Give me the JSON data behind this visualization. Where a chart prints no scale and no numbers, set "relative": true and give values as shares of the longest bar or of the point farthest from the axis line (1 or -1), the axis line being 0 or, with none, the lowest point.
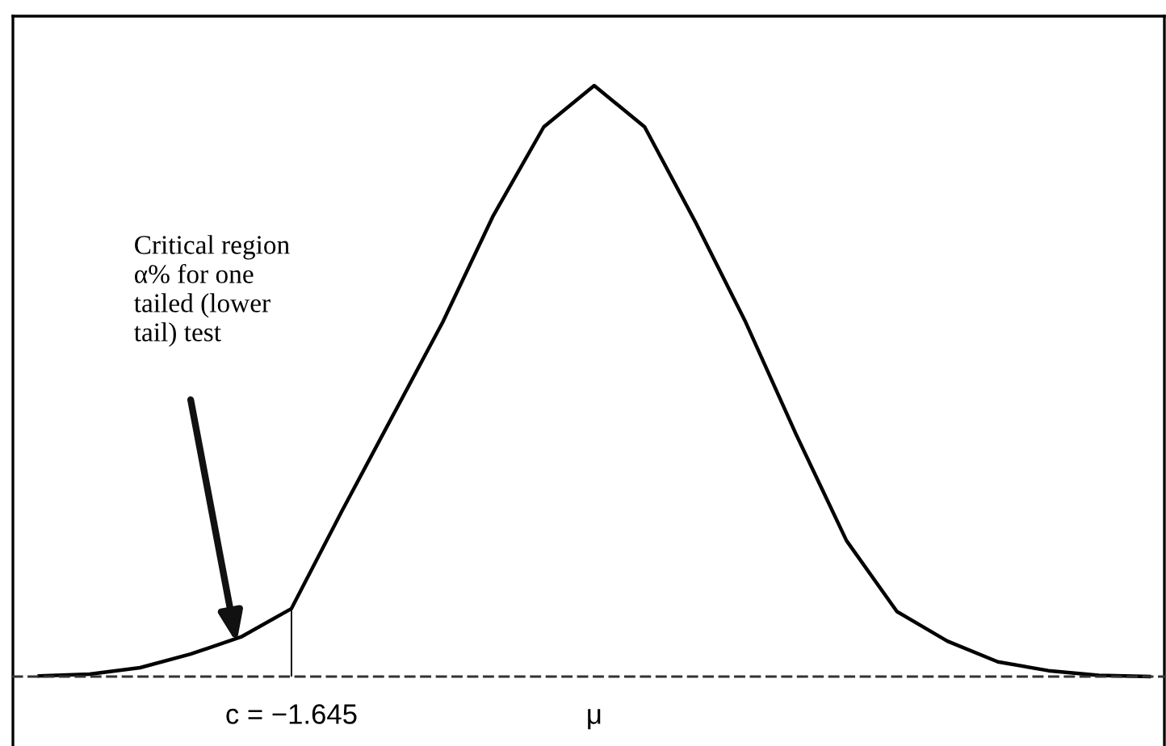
{
  "chart_data": {
    "type": "line",
    "relative": true,
    "categories": [
      null,
      null,
      null,
      null,
      null,
      "c = −1.645",
      null,
      null,
      null,
      null,
      null,
      "μ",
      null,
      null,
      null,
      null,
      null,
      null,
      null,
      null,
      null,
      null,
      null
    ],
    "series": [
      {
        "color": "#000000",
        "values": [
          0.001,
          0.004,
          0.015,
          0.038,
          0.067,
          0.115,
          0.28,
          0.44,
          0.6,
          0.78,
          0.93,
          1,
          0.93,
          0.77,
          0.6,
          0.41,
          0.23,
          0.11,
          0.06,
          0.025,
          0.01,
          0.002,
          0
        ]
      },
      {
        "type": "bar",
        "color": "#000000",
        "values": [
          null,
          null,
          null,
          null,
          null,
          0.115,
          null,
          null,
          null,
          null,
          null,
          null,
          null,
          null,
          null,
          null,
          null,
          null,
          null,
          null,
          null,
          null,
          null
        ]
      }
    ],
    "annotations": [
      "Critical region\nα% for one\ntailed (lower\ntail) test"
    ],
    "grid": false
  }
}
